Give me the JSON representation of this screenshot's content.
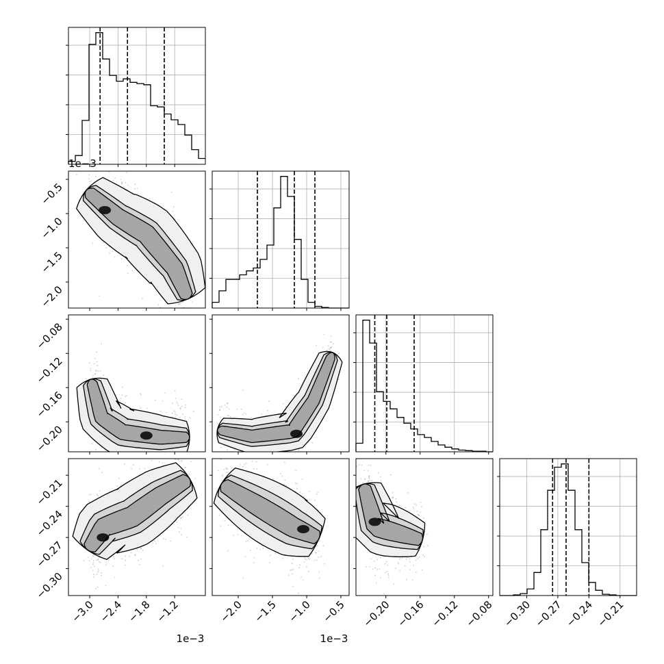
{
  "chart_data": {
    "type": "corner",
    "n_params": 4,
    "offset_labels": {
      "x0": "1e−3",
      "x1": "1e−3",
      "y1": "1e−3"
    },
    "grid": true,
    "params": [
      {
        "range": [
          -3.45,
          -0.55
        ],
        "ticks": [
          -3.0,
          -2.4,
          -1.8,
          -1.2
        ],
        "tick_labels": [
          "−3.0",
          "−2.4",
          "−1.8",
          "−1.2"
        ],
        "quantiles": [
          -2.78,
          -2.2,
          -1.42
        ],
        "hist_edges_start": -3.45,
        "hist_bin_width": 0.145,
        "hist_counts": [
          5,
          15,
          75,
          205,
          225,
          180,
          152,
          142,
          146,
          140,
          138,
          136,
          100,
          98,
          86,
          76,
          68,
          50,
          25,
          10
        ]
      },
      {
        "range": [
          -2.38,
          -0.38
        ],
        "ticks": [
          -2.0,
          -1.5,
          -1.0,
          -0.5
        ],
        "tick_labels": [
          "−2.0",
          "−1.5",
          "−1.0",
          "−0.5"
        ],
        "quantiles": [
          -1.72,
          -1.18,
          -0.88
        ],
        "hist_edges_start": -2.38,
        "hist_bin_width": 0.1,
        "hist_counts": [
          10,
          30,
          50,
          50,
          58,
          65,
          70,
          85,
          110,
          175,
          230,
          195,
          120,
          50,
          10,
          3,
          1,
          0,
          0,
          0
        ]
      },
      {
        "range": [
          -0.235,
          -0.075
        ],
        "ticks": [
          -0.2,
          -0.16,
          -0.12,
          -0.08
        ],
        "tick_labels": [
          "−0.20",
          "−0.16",
          "−0.12",
          "−0.08"
        ],
        "y_ticks": [
          -0.08,
          -0.12,
          -0.16,
          -0.2
        ],
        "y_tick_labels": [
          "−0.08",
          "−0.12",
          "−0.16",
          "−0.20"
        ],
        "quantiles": [
          -0.213,
          -0.199,
          -0.167
        ],
        "hist_edges_start": -0.235,
        "hist_bin_width": 0.008,
        "hist_counts": [
          15,
          230,
          190,
          105,
          88,
          75,
          60,
          50,
          40,
          30,
          25,
          18,
          12,
          8,
          5,
          3,
          2,
          1,
          1,
          0
        ]
      },
      {
        "range": [
          -0.326,
          -0.194
        ],
        "ticks": [
          -0.3,
          -0.27,
          -0.24,
          -0.21
        ],
        "tick_labels": [
          "−0.30",
          "−0.27",
          "−0.24",
          "−0.21"
        ],
        "quantiles": [
          -0.275,
          -0.262,
          -0.24
        ],
        "hist_edges_start": -0.326,
        "hist_bin_width": 0.0066,
        "hist_counts": [
          0,
          0,
          1,
          3,
          10,
          35,
          100,
          160,
          195,
          200,
          160,
          100,
          50,
          20,
          8,
          2,
          1,
          0,
          0,
          0
        ]
      }
    ],
    "pairs": [
      {
        "row": 1,
        "col": 0,
        "curve": [
          [
            -3.0,
            -0.7
          ],
          [
            -2.4,
            -1.05
          ],
          [
            -1.8,
            -1.3
          ],
          [
            -1.2,
            -1.8
          ],
          [
            -0.95,
            -2.2
          ]
        ],
        "width": [
          0.45,
          0.22,
          0.14
        ],
        "peak": [
          -2.68,
          -0.95
        ]
      },
      {
        "row": 2,
        "col": 0,
        "curve": [
          [
            -2.95,
            -0.155
          ],
          [
            -2.75,
            -0.195
          ],
          [
            -2.3,
            -0.212
          ],
          [
            -1.5,
            -0.218
          ],
          [
            -0.95,
            -0.218
          ]
        ],
        "width": [
          0.028,
          0.016,
          0.009
        ],
        "peak": [
          -1.8,
          -0.216
        ]
      },
      {
        "row": 3,
        "col": 0,
        "curve": [
          [
            -3.0,
            -0.28
          ],
          [
            -2.7,
            -0.26
          ],
          [
            -2.1,
            -0.25
          ],
          [
            -1.5,
            -0.23
          ],
          [
            -0.95,
            -0.215
          ]
        ],
        "width": [
          0.03,
          0.017,
          0.01
        ],
        "peak": [
          -2.72,
          -0.27
        ]
      },
      {
        "row": 2,
        "col": 1,
        "curve": [
          [
            -2.25,
            -0.21
          ],
          [
            -1.8,
            -0.217
          ],
          [
            -1.2,
            -0.211
          ],
          [
            -0.9,
            -0.175
          ],
          [
            -0.65,
            -0.125
          ]
        ],
        "width": [
          0.022,
          0.013,
          0.008
        ],
        "peak": [
          -1.15,
          -0.214
        ]
      },
      {
        "row": 3,
        "col": 1,
        "curve": [
          [
            -2.2,
            -0.22
          ],
          [
            -1.7,
            -0.24
          ],
          [
            -1.2,
            -0.26
          ],
          [
            -0.85,
            -0.27
          ]
        ],
        "width": [
          0.03,
          0.018,
          0.01
        ],
        "peak": [
          -1.05,
          -0.262
        ]
      },
      {
        "row": 3,
        "col": 2,
        "curve": [
          [
            -0.225,
            -0.222
          ],
          [
            -0.212,
            -0.26
          ],
          [
            -0.19,
            -0.265
          ],
          [
            -0.16,
            -0.272
          ]
        ],
        "width": [
          0.025,
          0.015,
          0.009
        ],
        "peak": [
          -0.213,
          -0.255
        ]
      }
    ]
  }
}
